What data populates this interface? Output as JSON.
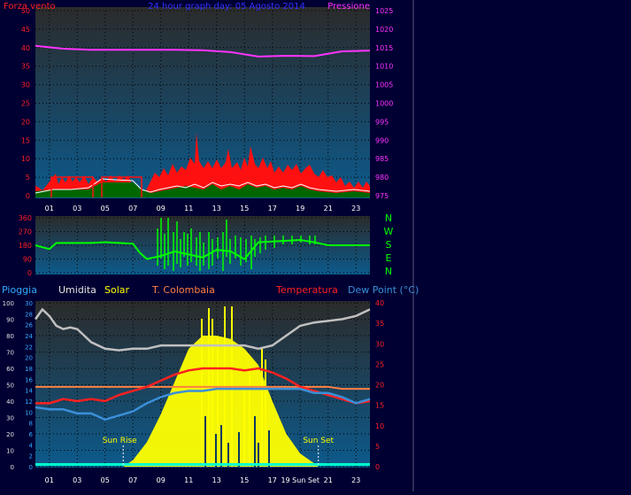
{
  "chart_data": [
    {
      "type": "line",
      "title": "24 hour graph day: 05 Agosto 2014",
      "ylabel_left": "Forza vento",
      "ylabel_right": "Pressione",
      "ylim_left": [
        0,
        50
      ],
      "ylim_right": [
        975,
        1025
      ],
      "yticks_left": [
        "0",
        "5",
        "10",
        "15",
        "20",
        "25",
        "30",
        "35",
        "40",
        "45",
        "50"
      ],
      "yticks_right": [
        "975",
        "980",
        "985",
        "990",
        "995",
        "1000",
        "1005",
        "1010",
        "1015",
        "1020",
        "1025"
      ],
      "xticks": [
        "01",
        "03",
        "05",
        "07",
        "09",
        "11",
        "13",
        "15",
        "17",
        "19",
        "21",
        "23"
      ],
      "series": [
        {
          "name": "Pressione",
          "color": "#ff33ff",
          "axis": "right",
          "x": [
            0,
            2,
            4,
            6,
            8,
            10,
            12,
            14,
            16,
            18,
            20,
            22,
            24
          ],
          "values": [
            1015.5,
            1014.7,
            1014.4,
            1014.4,
            1014.4,
            1014.4,
            1014.3,
            1013.8,
            1012.6,
            1012.8,
            1012.7,
            1014.0,
            1014.2
          ]
        }
      ]
    },
    {
      "type": "line",
      "ylim": [
        0,
        360
      ],
      "yticks": [
        "0",
        "90",
        "180",
        "270",
        "360"
      ],
      "compass_labels": [
        "N",
        "W",
        "S",
        "E",
        "N"
      ],
      "series": [
        {
          "color": "#00ff00",
          "x": [
            0,
            1,
            1.5,
            2,
            3,
            4,
            5,
            6,
            7,
            7.5,
            8,
            9,
            10,
            11,
            12,
            13,
            14,
            15,
            16,
            17,
            18,
            19,
            20,
            21,
            22,
            23,
            24
          ],
          "values": [
            180,
            155,
            195,
            195,
            195,
            195,
            200,
            195,
            190,
            130,
            90,
            110,
            140,
            120,
            100,
            150,
            140,
            90,
            200,
            205,
            210,
            215,
            200,
            180,
            180,
            180,
            180
          ]
        }
      ]
    },
    {
      "type": "line",
      "legend": [
        "Pioggia",
        "Umidita",
        "Solar",
        "T. Colombaia",
        "Temperatura",
        "Dew Point (°C)"
      ],
      "ylim_humidity": [
        0,
        100
      ],
      "ylim_rain": [
        0,
        30
      ],
      "ylim_temp": [
        0,
        40
      ],
      "yticks_humidity": [
        "0",
        "10",
        "20",
        "30",
        "40",
        "50",
        "60",
        "70",
        "80",
        "90",
        "100"
      ],
      "yticks_rain": [
        "0",
        "2",
        "4",
        "6",
        "8",
        "10",
        "12",
        "14",
        "16",
        "18",
        "20",
        "22",
        "24",
        "26",
        "28",
        "30"
      ],
      "yticks_temp": [
        "0",
        "5",
        "10",
        "15",
        "20",
        "25",
        "30",
        "35",
        "40"
      ],
      "xticks": [
        "01",
        "03",
        "05",
        "07",
        "09",
        "11",
        "13",
        "15",
        "17",
        "19 Sun Set",
        "21",
        "23"
      ],
      "annotations": [
        "Sun Rise",
        "Sun Set"
      ],
      "sunrise_hour": 6.3,
      "sunset_hour": 20.3,
      "series": [
        {
          "name": "Umidita",
          "color": "#c0c0c0",
          "x": [
            0,
            0.5,
            1,
            1.5,
            2,
            2.5,
            3,
            3.5,
            4,
            5,
            6,
            7,
            8,
            9,
            10,
            11,
            12,
            13,
            14,
            15,
            16,
            17,
            18,
            19,
            20,
            21,
            22,
            23,
            24
          ],
          "values": [
            90,
            96,
            92,
            86,
            84,
            85,
            84,
            80,
            76,
            72,
            71,
            72,
            72,
            74,
            74,
            74,
            74,
            74,
            74,
            74,
            72,
            74,
            80,
            86,
            88,
            89,
            90,
            92,
            96
          ]
        },
        {
          "name": "Temperatura",
          "color": "#ff2020",
          "x": [
            0,
            1,
            2,
            3,
            4,
            5,
            6,
            7,
            8,
            9,
            10,
            11,
            12,
            13,
            14,
            15,
            16,
            17,
            18,
            19,
            20,
            21,
            22,
            23,
            24
          ],
          "values": [
            15.5,
            15.5,
            16.5,
            16,
            16.5,
            16,
            17.5,
            18.5,
            19.5,
            21,
            22.5,
            23.5,
            24,
            24,
            24,
            23.5,
            24,
            23,
            21.5,
            19.5,
            18.5,
            17.5,
            16.5,
            15.5,
            16
          ]
        },
        {
          "name": "Dew Point",
          "color": "#3a8fd8",
          "x": [
            0,
            1,
            2,
            3,
            4,
            5,
            6,
            7,
            8,
            9,
            10,
            11,
            12,
            13,
            14,
            15,
            16,
            17,
            18,
            19,
            20,
            21,
            22,
            23,
            24
          ],
          "values": [
            14.5,
            14,
            14,
            13,
            13,
            11.5,
            12.5,
            13.5,
            15.5,
            17,
            18,
            18.5,
            18.5,
            19,
            19,
            19,
            19,
            19,
            19,
            19,
            18,
            18,
            17,
            15.5,
            16.5
          ]
        },
        {
          "name": "T. Colombaia",
          "color": "#ff8040",
          "x": [
            0,
            1,
            2,
            3,
            4,
            5,
            6,
            7,
            8,
            9,
            10,
            11,
            12,
            13,
            14,
            15,
            16,
            17,
            18,
            19,
            20,
            21,
            22,
            23,
            24
          ],
          "values": [
            19.5,
            19.5,
            19.5,
            19.5,
            19.5,
            19.5,
            19.5,
            19.5,
            19.5,
            19.5,
            19.5,
            19.5,
            19.5,
            19.5,
            19.5,
            19.5,
            19.5,
            19.5,
            19.5,
            19.5,
            19.5,
            19.5,
            19,
            19,
            19
          ]
        },
        {
          "name": "Solar",
          "color": "#ffff00",
          "x": [
            6.3,
            7,
            8,
            9,
            10,
            11,
            12,
            13,
            14,
            15,
            16,
            17,
            18,
            19,
            20,
            20.3
          ],
          "values": [
            0,
            4,
            15,
            32,
            52,
            72,
            80,
            80,
            78,
            72,
            62,
            40,
            20,
            8,
            2,
            0
          ]
        }
      ]
    }
  ]
}
